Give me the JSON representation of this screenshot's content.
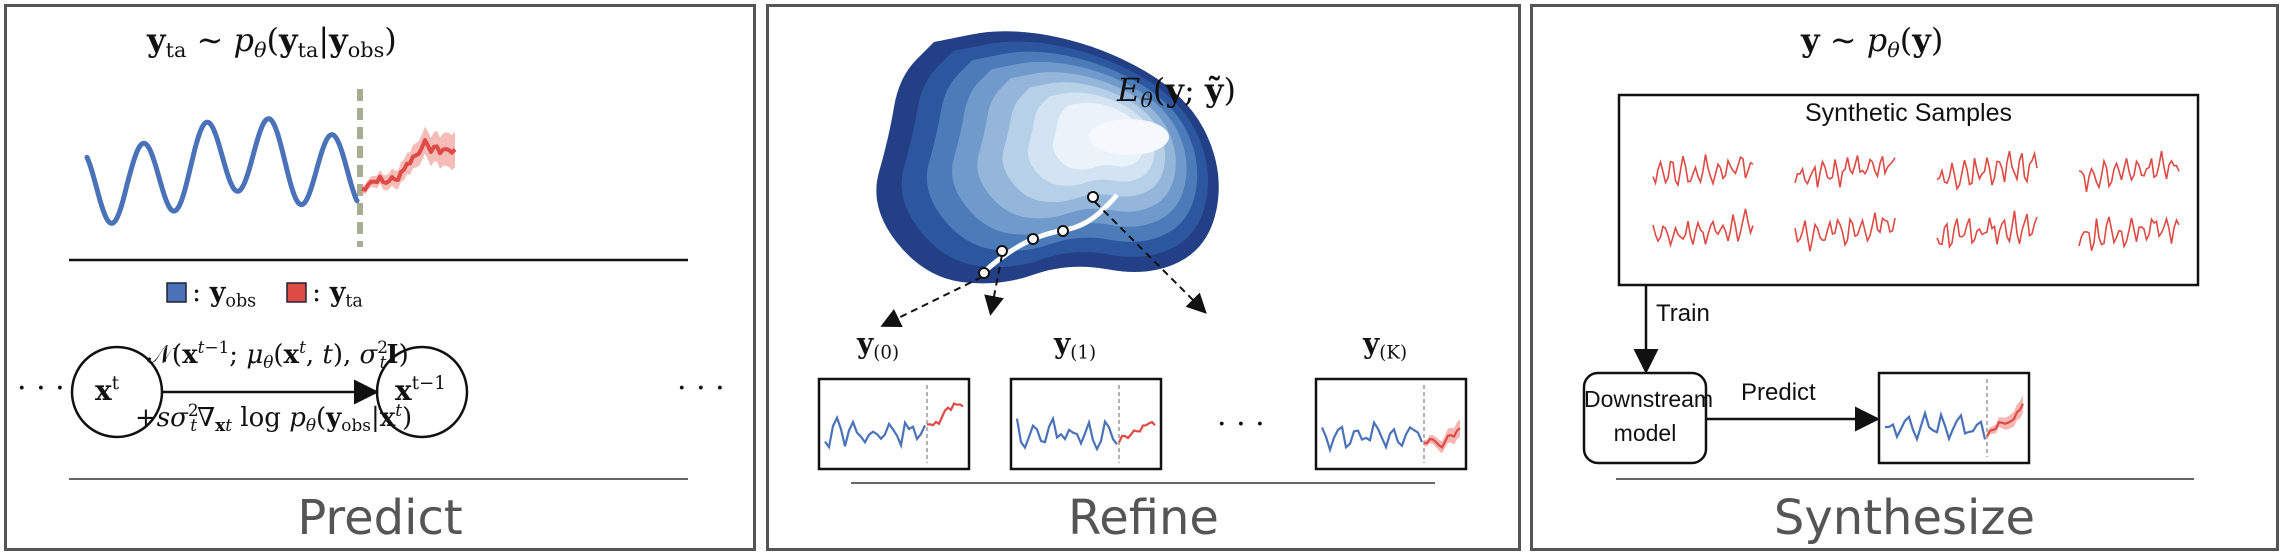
{
  "predict": {
    "title": "Predict",
    "legend_obs": "y",
    "legend_obs_sub": "obs",
    "legend_ta": "y",
    "legend_ta_sub": "ta",
    "node_left": "x",
    "node_left_sup": "t",
    "node_right": "x",
    "node_right_sup": "t−1",
    "ellipsis_left": "· · ·",
    "ellipsis_right": "· · ·"
  },
  "refine": {
    "title": "Refine",
    "energy_label": "E",
    "label_0": "y",
    "label_0_sub": "(0)",
    "label_1": "y",
    "label_1_sub": "(1)",
    "label_k": "y",
    "label_k_sub": "(K)",
    "ellipsis": "· · ·"
  },
  "synthesize": {
    "title": "Synthesize",
    "samples_title": "Synthetic Samples",
    "train_label": "Train",
    "downstream_line1": "Downstream",
    "downstream_line2": "model",
    "predict_label": "Predict"
  },
  "colors": {
    "obs": "#4a72b8",
    "ta": "#de4a44",
    "ta_band": "#f2a5a0",
    "contour_dark": "#233f86",
    "border": "#555555"
  }
}
